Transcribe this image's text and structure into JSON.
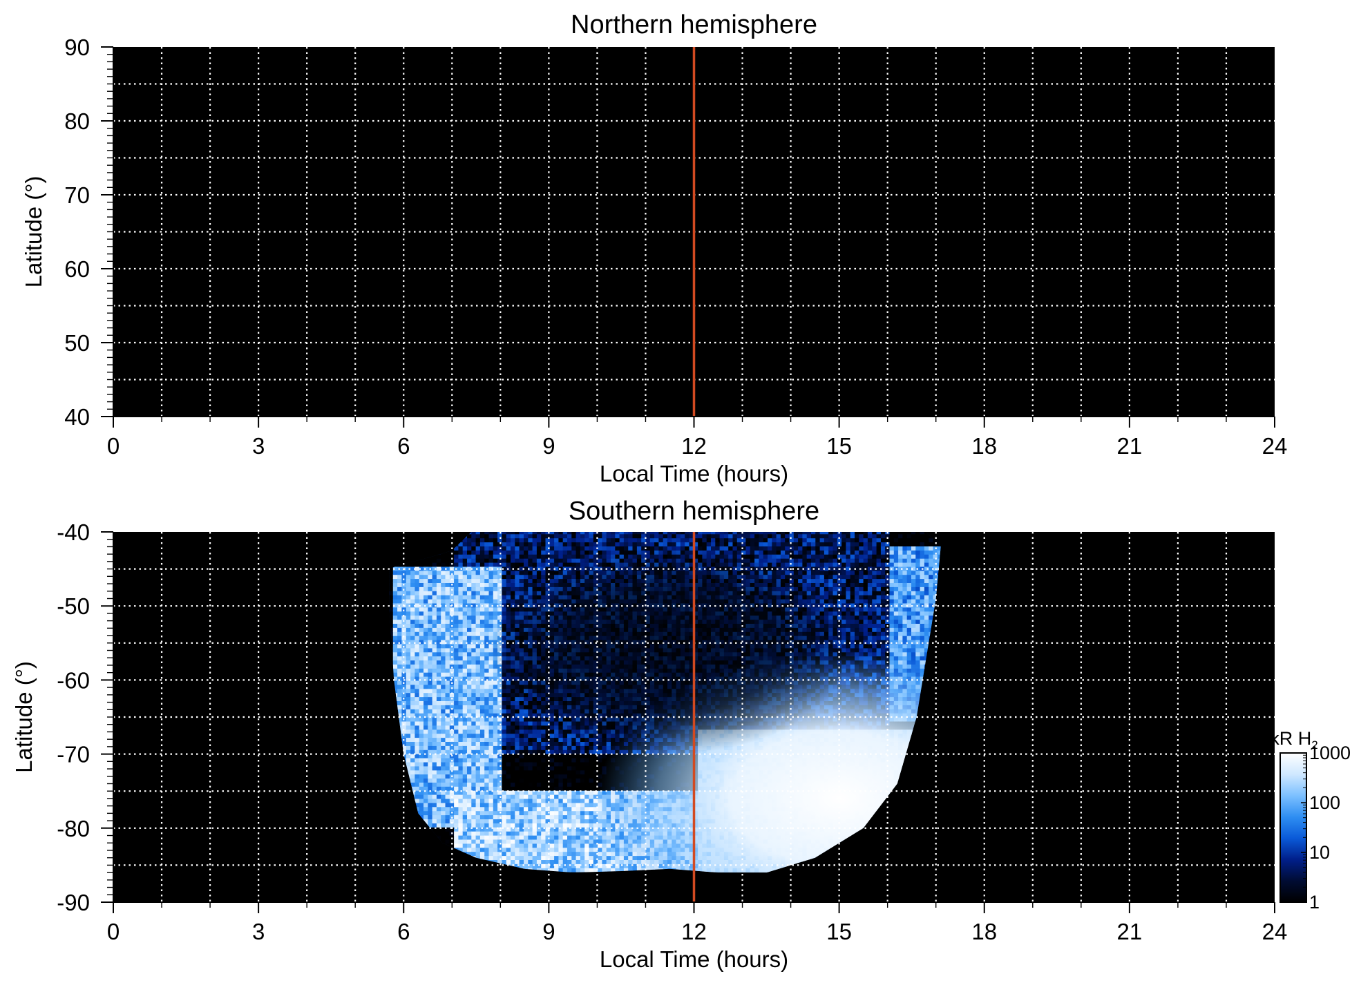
{
  "colors": {
    "background": "#000000",
    "grid": "#ffffff",
    "noon_line": "#d24a21",
    "colormap": [
      "#000000",
      "#000c33",
      "#001f8a",
      "#0a5ad8",
      "#2e8ef2",
      "#7cc0ff",
      "#cfe8ff",
      "#ffffff"
    ]
  },
  "chart_data": [
    {
      "type": "heatmap",
      "title": "Northern hemisphere",
      "xlabel": "Local Time (hours)",
      "ylabel": "Latitude (°)",
      "xlim": [
        0,
        24
      ],
      "ylim": [
        40,
        90
      ],
      "x_ticks": [
        "0",
        "3",
        "6",
        "9",
        "12",
        "15",
        "18",
        "21",
        "24"
      ],
      "y_ticks": [
        "40",
        "50",
        "60",
        "70",
        "80",
        "90"
      ],
      "grid": true,
      "grid_x_step_hours": 1,
      "grid_y_step_deg": 5,
      "reference_line_x": 12,
      "emission": "none observed (all black)"
    },
    {
      "type": "heatmap",
      "title": "Southern hemisphere",
      "xlabel": "Local Time (hours)",
      "ylabel": "Latitude (°)",
      "xlim": [
        0,
        24
      ],
      "ylim": [
        -90,
        -40
      ],
      "x_ticks": [
        "0",
        "3",
        "6",
        "9",
        "12",
        "15",
        "18",
        "21",
        "24"
      ],
      "y_ticks": [
        "-40",
        "-50",
        "-60",
        "-70",
        "-80",
        "-90"
      ],
      "grid": true,
      "grid_x_step_hours": 1,
      "grid_y_step_deg": 5,
      "reference_line_x": 12,
      "coverage_outline": [
        [
          5.7,
          -45
        ],
        [
          5.9,
          -44.5
        ],
        [
          6.5,
          -43.5
        ],
        [
          7.0,
          -42.5
        ],
        [
          7.4,
          -40
        ],
        [
          16.8,
          -40
        ],
        [
          17.1,
          -42
        ],
        [
          17.0,
          -49
        ],
        [
          16.8,
          -57
        ],
        [
          16.6,
          -65
        ],
        [
          16.2,
          -74
        ],
        [
          15.5,
          -80
        ],
        [
          14.5,
          -84
        ],
        [
          13.5,
          -86
        ],
        [
          12.5,
          -86
        ],
        [
          11.5,
          -85.5
        ],
        [
          10.5,
          -85.8
        ],
        [
          9.5,
          -86
        ],
        [
          8.5,
          -85.5
        ],
        [
          7.5,
          -84
        ],
        [
          6.8,
          -82
        ],
        [
          6.3,
          -78
        ],
        [
          6.0,
          -70
        ],
        [
          5.8,
          -60
        ],
        [
          5.7,
          -50
        ]
      ],
      "brightness_pattern": [
        {
          "region": "polar cap interior",
          "local_time": [
            7,
            16
          ],
          "latitude": [
            -70,
            -40
          ],
          "intensity_kR": 5
        },
        {
          "region": "dawn oval",
          "local_time": [
            5.7,
            8
          ],
          "latitude": [
            -80,
            -45
          ],
          "intensity_kR": 150
        },
        {
          "region": "prenoon oval",
          "local_time": [
            7,
            12
          ],
          "latitude": [
            -86,
            -75
          ],
          "intensity_kR": 250
        },
        {
          "region": "postnoon/dusk bright oval",
          "local_time": [
            12,
            16.5
          ],
          "latitude": [
            -86,
            -67
          ],
          "intensity_kR": 1000
        },
        {
          "region": "dusk flank",
          "local_time": [
            16,
            17.1
          ],
          "latitude": [
            -66,
            -42
          ],
          "intensity_kR": 80
        }
      ],
      "colorbar": {
        "label": "kR H",
        "label_subscript": "2",
        "scale": "log",
        "range": [
          1,
          1000
        ],
        "ticks": [
          "1000",
          "100",
          "10",
          "1"
        ]
      }
    }
  ]
}
